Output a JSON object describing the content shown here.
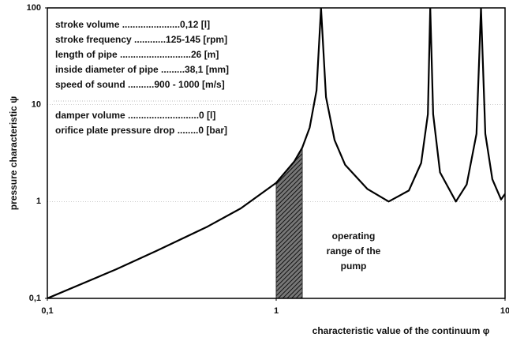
{
  "chart_data": {
    "type": "line",
    "xlabel": "characteristic value of the continuum φ",
    "ylabel": "pressure characteristic ψ",
    "x": [
      0.1,
      0.2,
      0.3,
      0.5,
      0.7,
      1.0,
      1.2,
      1.3,
      1.4,
      1.5,
      1.57,
      1.65,
      1.8,
      2.0,
      2.5,
      3.1,
      3.8,
      4.3,
      4.6,
      4.71,
      4.85,
      5.2,
      6.1,
      6.8,
      7.5,
      7.85,
      8.2,
      8.8,
      9.6,
      10
    ],
    "series": [
      {
        "color": "#000000",
        "values": [
          0.1,
          0.2,
          0.31,
          0.55,
          0.85,
          1.56,
          2.6,
          3.6,
          5.8,
          14,
          100,
          12,
          4.3,
          2.4,
          1.35,
          1.0,
          1.3,
          2.5,
          8,
          100,
          8,
          2,
          1.0,
          1.5,
          5,
          100,
          5,
          1.7,
          1.05,
          1.2
        ]
      }
    ],
    "xlim": [
      0.1,
      10
    ],
    "ylim": [
      0.1,
      100
    ],
    "xticks": [
      {
        "value": 0.1,
        "label": "0,1"
      },
      1,
      10
    ],
    "yticks": [
      {
        "value": 0.1,
        "label": "0,1"
      },
      1,
      10,
      100
    ],
    "xscale": "log",
    "yscale": "log",
    "grid": true,
    "shaded_range": [
      1.0,
      1.3
    ],
    "shade_color": "#333333",
    "annotations": [
      "stroke  volume ......................0,12 [l]",
      "stroke frequency ............125-145 [rpm]",
      "length of pipe ...........................26 [m]",
      "inside diameter of pipe .........38,1 [mm]",
      "speed of sound ..........900 - 1000 [m/s]",
      "damper volume ...........................0 [l]",
      "orifice plate pressure drop ........0 [bar]"
    ],
    "range_label": [
      "operating",
      "range of the",
      "pump"
    ]
  }
}
